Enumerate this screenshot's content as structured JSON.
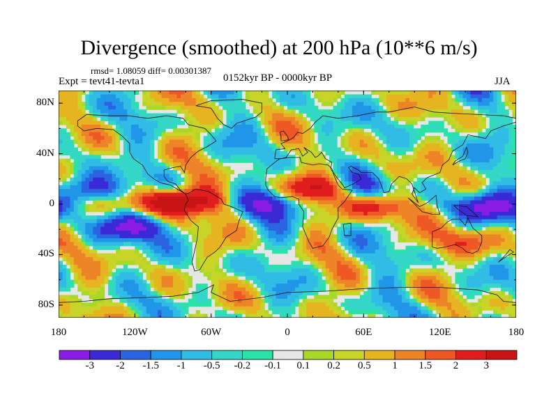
{
  "header": {
    "title": "Divergence (smoothed) at 200 hPa (10**6 m/s)",
    "stats": "rmsd= 1.08059 diff= 0.00301387",
    "experiment": "Expt = tevt41-tevta1",
    "period": "0152kyr BP - 0000kyr BP",
    "season": "JJA"
  },
  "chart_data": {
    "type": "heatmap",
    "title": "Divergence (smoothed) at 200 hPa (10**6 m/s)",
    "subtitle": "0152kyr BP - 0000kyr BP",
    "xlabel": "",
    "ylabel": "",
    "xlim": [
      -180,
      180
    ],
    "ylim": [
      -90,
      90
    ],
    "x_ticks": [
      -180,
      -120,
      -60,
      0,
      60,
      120,
      180
    ],
    "x_tick_labels": [
      "180",
      "120W",
      "60W",
      "0",
      "60E",
      "120E",
      "180"
    ],
    "y_ticks": [
      80,
      40,
      0,
      -40,
      -80
    ],
    "y_tick_labels": [
      "80N",
      "40N",
      "0",
      "40S",
      "80S"
    ],
    "colorbar": {
      "levels": [
        "-3",
        "-2",
        "-1.5",
        "-1",
        "-0.5",
        "-0.2",
        "-0.1",
        "0.1",
        "0.2",
        "0.5",
        "1",
        "1.5",
        "2",
        "3"
      ],
      "colors": [
        "#8a1ce6",
        "#3a2ad6",
        "#2a64e0",
        "#2196e8",
        "#31bce6",
        "#34d6c8",
        "#2be2a8",
        "#e6e6e6",
        "#a8d828",
        "#c8d428",
        "#e6b420",
        "#ee8428",
        "#ee5824",
        "#e01e1e",
        "#c81414"
      ]
    },
    "features": [
      {
        "name": "negative core eastern Pacific south of equator",
        "lon": -122,
        "lat": -18,
        "value": -3.2
      },
      {
        "name": "negative core central Pacific north of equator",
        "lon": -152,
        "lat": 12,
        "value": -2.6
      },
      {
        "name": "negative core equatorial Atlantic",
        "lon": -10,
        "lat": 0,
        "value": -2.5
      },
      {
        "name": "negative core western Pacific maritime continent",
        "lon": 158,
        "lat": -2,
        "value": -3.2
      },
      {
        "name": "negative core Arabian Sea",
        "lon": 58,
        "lat": 12,
        "value": -1.8
      },
      {
        "name": "positive core equatorial eastern Pacific",
        "lon": -100,
        "lat": 2,
        "value": 3.2
      },
      {
        "name": "positive core north Africa",
        "lon": 28,
        "lat": 12,
        "value": 2.8
      },
      {
        "name": "positive core Indian Ocean",
        "lon": 72,
        "lat": -2,
        "value": 2.6
      },
      {
        "name": "positive core Australia south",
        "lon": 140,
        "lat": -30,
        "value": 1.6
      },
      {
        "name": "positive core South America",
        "lon": -70,
        "lat": 2,
        "value": 2.2
      }
    ]
  }
}
